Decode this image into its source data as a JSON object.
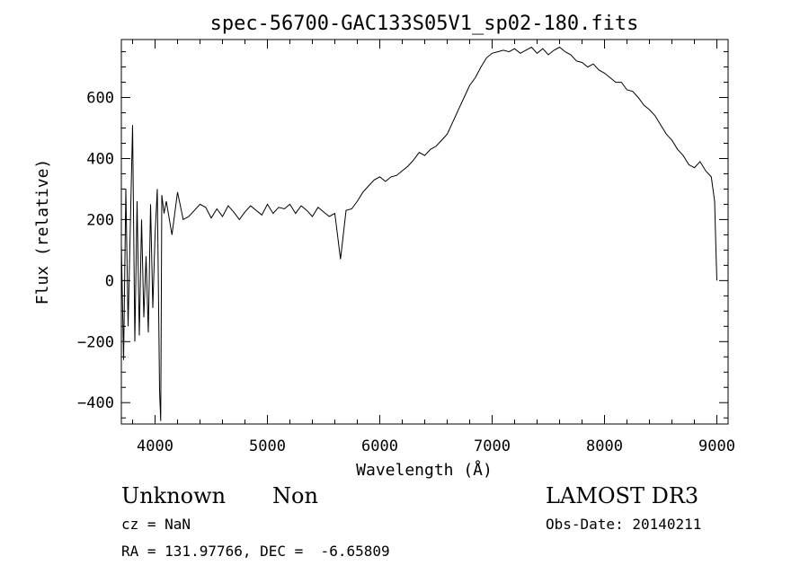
{
  "chart_data": {
    "type": "line",
    "title": "spec-56700-GAC133S05V1_sp02-180.fits",
    "xlabel": "Wavelength (Å)",
    "ylabel": "Flux (relative)",
    "xlim": [
      3700,
      9100
    ],
    "ylim": [
      -470,
      790
    ],
    "x_ticks": [
      4000,
      5000,
      6000,
      7000,
      8000,
      9000
    ],
    "x_tick_labels": [
      "4000",
      "5000",
      "6000",
      "7000",
      "8000",
      "9000"
    ],
    "y_ticks": [
      -400,
      -200,
      0,
      200,
      400,
      600
    ],
    "y_tick_labels": [
      "−400",
      "−200",
      "0",
      "200",
      "400",
      "600"
    ],
    "grid": false,
    "series": [
      {
        "name": "flux",
        "x": [
          3700,
          3720,
          3740,
          3760,
          3780,
          3800,
          3820,
          3840,
          3860,
          3880,
          3900,
          3920,
          3940,
          3960,
          3980,
          4000,
          4020,
          4040,
          4050,
          4060,
          4080,
          4100,
          4150,
          4200,
          4250,
          4300,
          4350,
          4400,
          4450,
          4500,
          4550,
          4600,
          4650,
          4700,
          4750,
          4800,
          4850,
          4900,
          4950,
          5000,
          5050,
          5100,
          5150,
          5200,
          5250,
          5300,
          5350,
          5400,
          5450,
          5500,
          5550,
          5600,
          5650,
          5700,
          5750,
          5800,
          5850,
          5900,
          5950,
          6000,
          6050,
          6100,
          6150,
          6200,
          6250,
          6300,
          6350,
          6400,
          6450,
          6500,
          6550,
          6600,
          6650,
          6700,
          6750,
          6800,
          6850,
          6900,
          6950,
          7000,
          7050,
          7100,
          7150,
          7200,
          7250,
          7300,
          7350,
          7400,
          7450,
          7500,
          7550,
          7600,
          7650,
          7700,
          7750,
          7800,
          7850,
          7900,
          7950,
          8000,
          8050,
          8100,
          8150,
          8200,
          8250,
          8300,
          8350,
          8400,
          8450,
          8500,
          8550,
          8600,
          8650,
          8700,
          8750,
          8800,
          8850,
          8900,
          8950,
          8980,
          8990,
          9000
        ],
        "y": [
          120,
          -260,
          300,
          -150,
          180,
          510,
          -200,
          260,
          -180,
          200,
          -120,
          80,
          -170,
          250,
          -90,
          150,
          300,
          -360,
          -460,
          280,
          220,
          260,
          150,
          290,
          200,
          210,
          230,
          250,
          240,
          205,
          235,
          210,
          245,
          225,
          200,
          225,
          245,
          230,
          215,
          250,
          220,
          240,
          235,
          250,
          220,
          245,
          230,
          210,
          240,
          225,
          210,
          220,
          70,
          230,
          235,
          260,
          290,
          310,
          330,
          340,
          325,
          340,
          345,
          360,
          375,
          395,
          420,
          410,
          430,
          440,
          460,
          480,
          520,
          560,
          600,
          640,
          665,
          700,
          730,
          745,
          750,
          755,
          750,
          760,
          745,
          755,
          765,
          745,
          760,
          740,
          755,
          765,
          750,
          740,
          720,
          715,
          700,
          710,
          690,
          680,
          665,
          650,
          650,
          625,
          620,
          600,
          575,
          560,
          540,
          510,
          480,
          460,
          430,
          410,
          380,
          370,
          390,
          360,
          340,
          260,
          120,
          0
        ]
      }
    ]
  },
  "object": {
    "class": "Unknown",
    "subclass": "Non",
    "cz": "cz = NaN",
    "coords": "RA = 131.97766, DEC =  -6.65809"
  },
  "survey": {
    "name": "LAMOST DR3",
    "obs_date": "Obs-Date: 20140211"
  }
}
